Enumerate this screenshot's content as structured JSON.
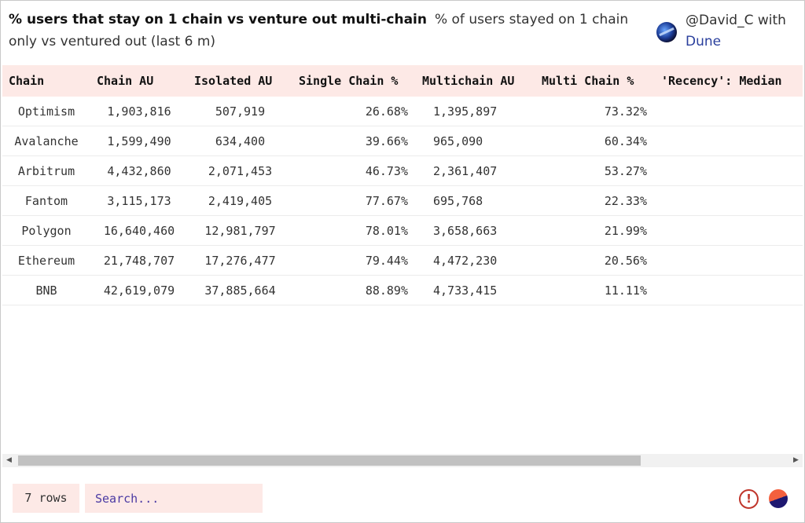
{
  "header": {
    "title": "% users that stay on 1 chain vs venture out multi-chain",
    "subtitle": "% of users stayed on 1 chain only vs ventured out (last 6 m)"
  },
  "author": {
    "handle": "@David_C",
    "with_text": "with",
    "platform": "Dune"
  },
  "table": {
    "columns": [
      "Chain",
      "Chain AU",
      "Isolated AU",
      "Single Chain %",
      "Multichain AU",
      "Multi Chain %",
      "'Recency': Median"
    ],
    "rows": [
      [
        "Optimism",
        "1,903,816",
        "507,919",
        "26.68%",
        "1,395,897",
        "73.32%",
        ""
      ],
      [
        "Avalanche",
        "1,599,490",
        "634,400",
        "39.66%",
        "965,090",
        "60.34%",
        ""
      ],
      [
        "Arbitrum",
        "4,432,860",
        "2,071,453",
        "46.73%",
        "2,361,407",
        "53.27%",
        ""
      ],
      [
        "Fantom",
        "3,115,173",
        "2,419,405",
        "77.67%",
        "695,768",
        "22.33%",
        ""
      ],
      [
        "Polygon",
        "16,640,460",
        "12,981,797",
        "78.01%",
        "3,658,663",
        "21.99%",
        ""
      ],
      [
        "Ethereum",
        "21,748,707",
        "17,276,477",
        "79.44%",
        "4,472,230",
        "20.56%",
        ""
      ],
      [
        "BNB",
        "42,619,079",
        "37,885,664",
        "88.89%",
        "4,733,415",
        "11.11%",
        ""
      ]
    ]
  },
  "footer": {
    "row_count": "7 rows",
    "search_placeholder": "Search..."
  },
  "icons": {
    "scroll_left": "scroll-left-arrow",
    "scroll_right": "scroll-right-arrow",
    "warning": "exclamation-circle",
    "dune_logo": "dune-logo"
  },
  "colors": {
    "header_bg": "#fde9e6",
    "warning": "#c0362c",
    "link": "#2a3f9d"
  }
}
